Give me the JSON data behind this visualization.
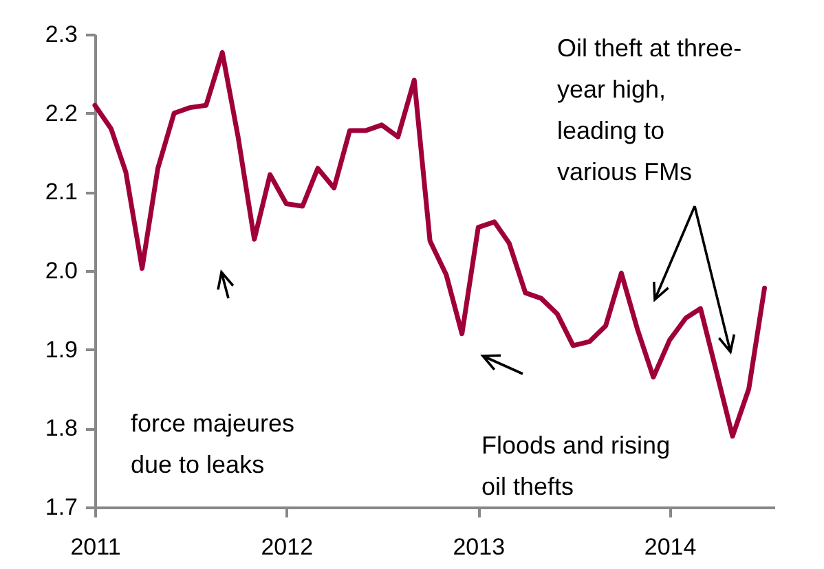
{
  "chart_data": {
    "type": "line",
    "x": [
      "2011-01",
      "2011-02",
      "2011-03",
      "2011-04",
      "2011-05",
      "2011-06",
      "2011-07",
      "2011-08",
      "2011-09",
      "2011-10",
      "2011-11",
      "2011-12",
      "2012-01",
      "2012-02",
      "2012-03",
      "2012-04",
      "2012-05",
      "2012-06",
      "2012-07",
      "2012-08",
      "2012-09",
      "2012-10",
      "2012-11",
      "2012-12",
      "2013-01",
      "2013-02",
      "2013-03",
      "2013-04",
      "2013-05",
      "2013-06",
      "2013-07",
      "2013-08",
      "2013-09",
      "2013-10",
      "2013-11",
      "2013-12",
      "2014-01",
      "2014-02",
      "2014-03",
      "2014-04",
      "2014-05",
      "2014-06",
      "2014-07"
    ],
    "series": [
      {
        "color": "#a0003a",
        "values": [
          2.21,
          2.18,
          2.125,
          2.003,
          2.13,
          2.2,
          2.207,
          2.21,
          2.277,
          2.17,
          2.04,
          2.122,
          2.085,
          2.082,
          2.13,
          2.105,
          2.178,
          2.178,
          2.185,
          2.17,
          2.242,
          2.038,
          1.995,
          1.92,
          2.055,
          2.062,
          2.035,
          1.972,
          1.965,
          1.945,
          1.905,
          1.91,
          1.93,
          1.997,
          1.925,
          1.865,
          1.912,
          1.94,
          1.952,
          1.87,
          1.79,
          1.85,
          1.978
        ]
      }
    ],
    "xlim": [
      "2011-01-01",
      "2014-07-20"
    ],
    "xticks": [
      {
        "value": "2011-01-01",
        "label": "2011"
      },
      {
        "value": "2012-01-01",
        "label": "2012"
      },
      {
        "value": "2013-01-01",
        "label": "2013"
      },
      {
        "value": "2014-01-01",
        "label": "2014"
      }
    ],
    "ylim": [
      1.7,
      2.3
    ],
    "yticks": [
      1.7,
      1.8,
      1.9,
      {
        "value": 2,
        "label": "2.0"
      },
      2.1,
      2.2,
      2.3
    ],
    "marker": "none",
    "line_style": "solid",
    "annotations": [
      "force majeures due to leaks",
      "Floods and rising oil thefts",
      "Oil theft at three-year high, leading to various FMs"
    ]
  }
}
